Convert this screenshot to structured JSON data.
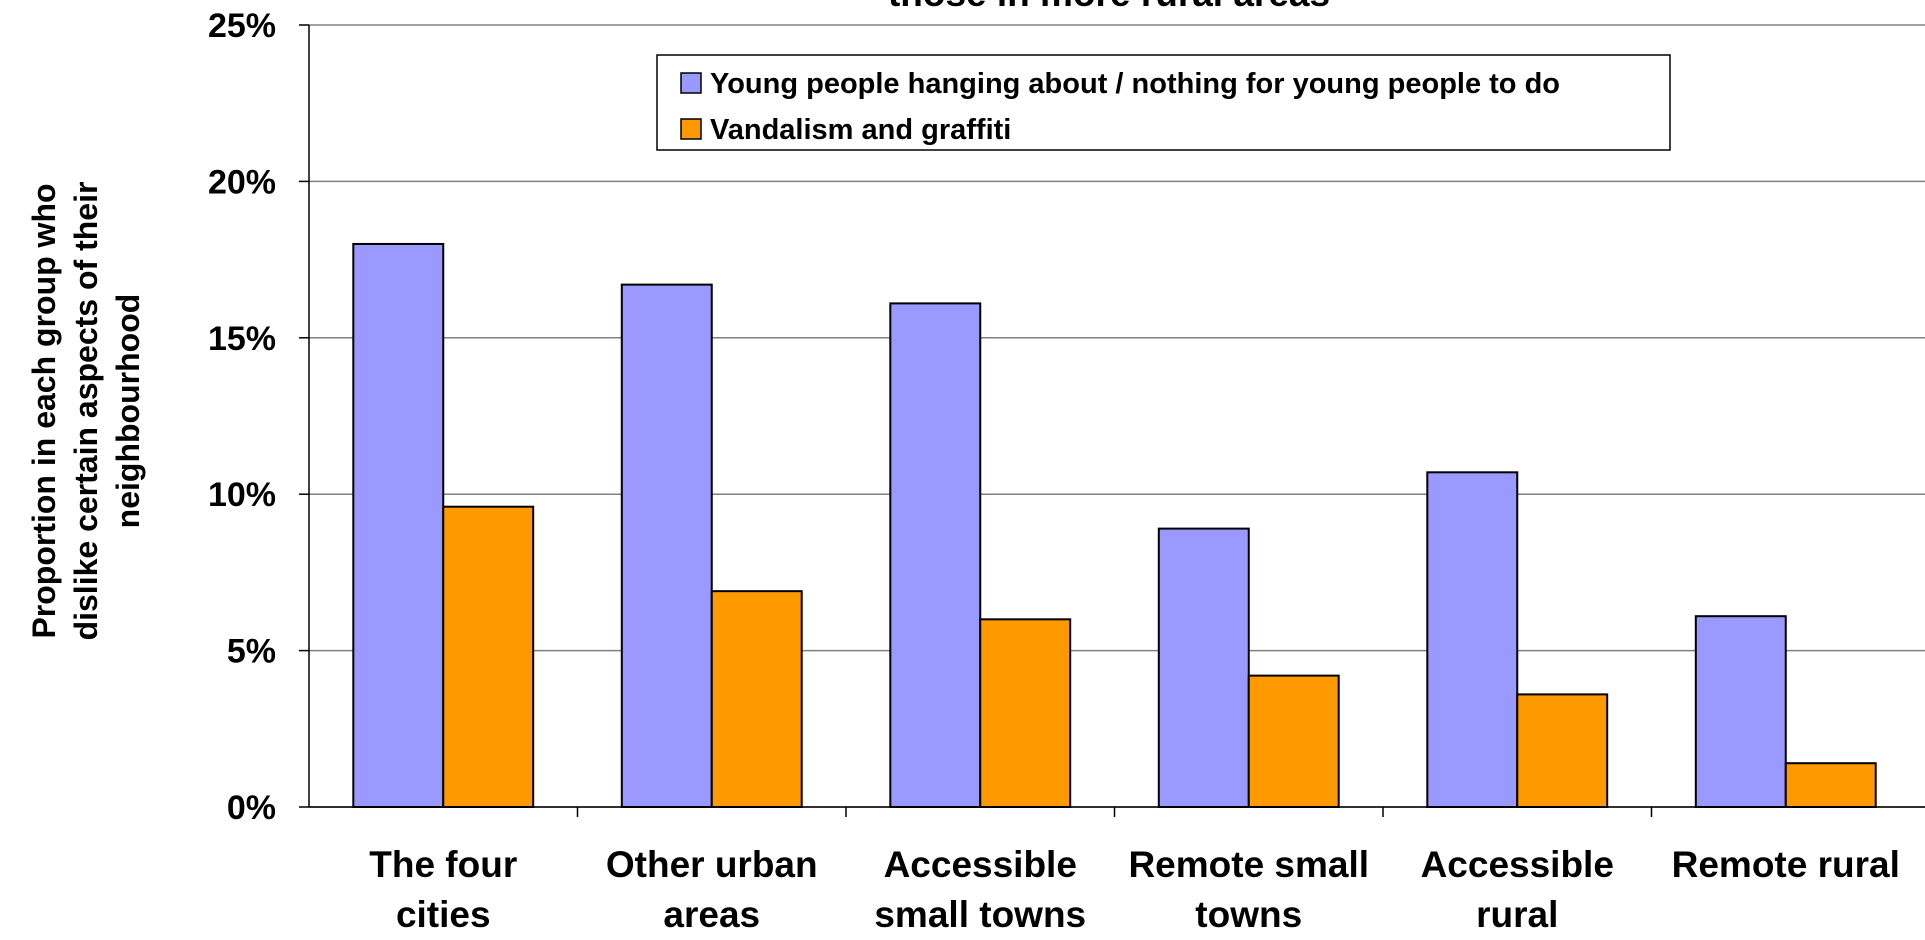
{
  "chart_data": {
    "type": "bar",
    "title": "those in more rural areas",
    "y_label": "Proportion in each group who dislike certain aspects of their neighbourhood",
    "categories": [
      "The four cities",
      "Other urban areas",
      "Accessible small towns",
      "Remote small towns",
      "Accessible rural",
      "Remote rural"
    ],
    "series": [
      {
        "name": "Young people hanging about / nothing for young people to do",
        "color": "#9999ff",
        "values": [
          18.0,
          16.7,
          16.1,
          8.9,
          10.7,
          6.1
        ]
      },
      {
        "name": "Vandalism and graffiti",
        "color": "#ff9900",
        "values": [
          9.6,
          6.9,
          6.0,
          4.2,
          3.6,
          1.4
        ]
      }
    ],
    "ylim": [
      0,
      25
    ],
    "yticks": [
      {
        "value": 0,
        "label": "0%"
      },
      {
        "value": 5,
        "label": "5%"
      },
      {
        "value": 10,
        "label": "10%"
      },
      {
        "value": 15,
        "label": "15%"
      },
      {
        "value": 20,
        "label": "20%"
      },
      {
        "value": 25,
        "label": "25%"
      }
    ],
    "grid": true,
    "legend": "top"
  }
}
